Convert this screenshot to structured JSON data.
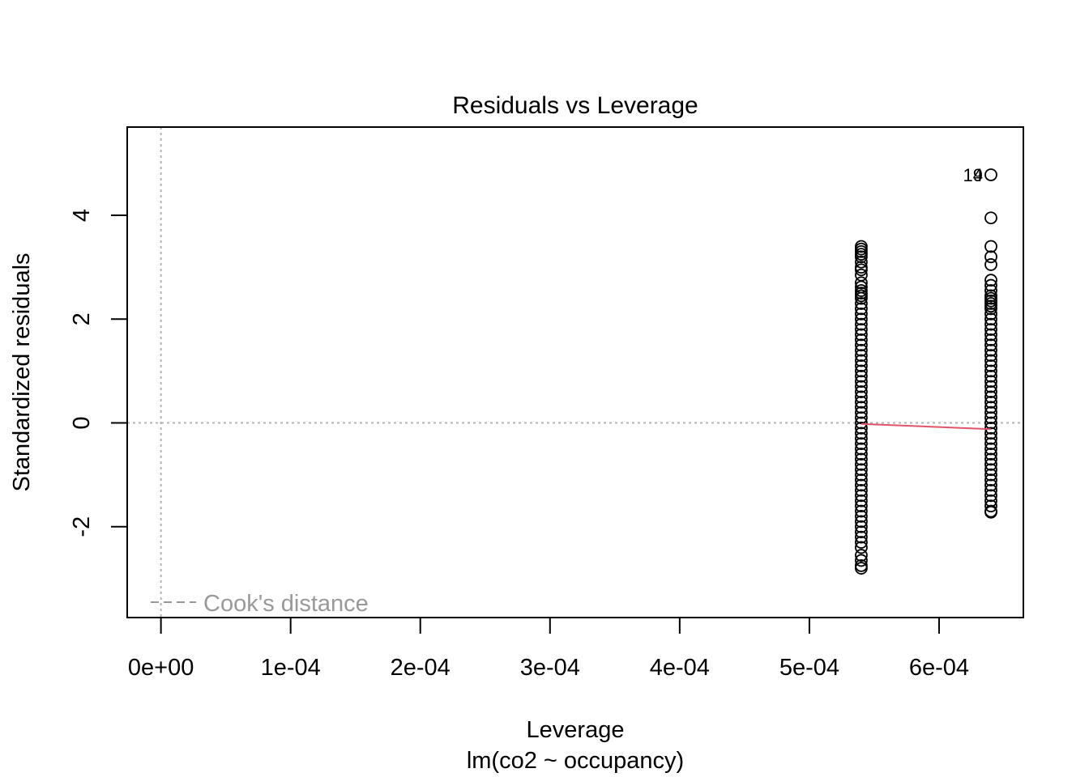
{
  "chart_data": {
    "type": "scatter",
    "title": "Residuals vs Leverage",
    "xlabel": "Leverage",
    "subtitle": "lm(co2 ~ occupancy)",
    "ylabel": "Standardized residuals",
    "xlim": [
      -2.6e-05,
      0.000665
    ],
    "ylim": [
      -3.75,
      5.7
    ],
    "x_ticks": [
      {
        "value": 0,
        "label": "0e+00"
      },
      {
        "value": 0.0001,
        "label": "1e-04"
      },
      {
        "value": 0.0002,
        "label": "2e-04"
      },
      {
        "value": 0.0003,
        "label": "3e-04"
      },
      {
        "value": 0.0004,
        "label": "4e-04"
      },
      {
        "value": 0.0005,
        "label": "5e-04"
      },
      {
        "value": 0.0006,
        "label": "6e-04"
      }
    ],
    "y_ticks": [
      {
        "value": -2,
        "label": "-2"
      },
      {
        "value": 0,
        "label": "0"
      },
      {
        "value": 2,
        "label": "2"
      },
      {
        "value": 4,
        "label": "4"
      }
    ],
    "reference_lines": {
      "h": 0,
      "v": 0,
      "style": "dotted",
      "color": "#b3b3b3"
    },
    "series": [
      {
        "x": 0.00054,
        "y": [
          3.4,
          3.35,
          3.3,
          3.25,
          3.2,
          3.1,
          3.0,
          2.95,
          2.85,
          2.7,
          2.62,
          2.55,
          2.5,
          2.45,
          2.4,
          2.3,
          2.2,
          2.1,
          2.0,
          1.9,
          1.8,
          1.7,
          1.6,
          1.5,
          1.4,
          1.3,
          1.2,
          1.1,
          1.0,
          0.9,
          0.8,
          0.7,
          0.6,
          0.5,
          0.4,
          0.3,
          0.2,
          0.1,
          0.0,
          -0.1,
          -0.2,
          -0.3,
          -0.4,
          -0.5,
          -0.6,
          -0.7,
          -0.8,
          -0.9,
          -1.0,
          -1.1,
          -1.2,
          -1.3,
          -1.4,
          -1.5,
          -1.6,
          -1.7,
          -1.8,
          -1.9,
          -2.0,
          -2.1,
          -2.2,
          -2.3,
          -2.4,
          -2.55,
          -2.65,
          -2.75,
          -2.8
        ]
      },
      {
        "x": 0.00064,
        "y": [
          4.78,
          3.95,
          3.4,
          3.2,
          3.05,
          2.75,
          2.65,
          2.55,
          2.45,
          2.4,
          2.35,
          2.3,
          2.25,
          2.2,
          2.1,
          2.0,
          1.9,
          1.8,
          1.7,
          1.6,
          1.5,
          1.4,
          1.3,
          1.2,
          1.1,
          1.0,
          0.9,
          0.8,
          0.7,
          0.6,
          0.5,
          0.4,
          0.3,
          0.2,
          0.1,
          0.0,
          -0.1,
          -0.2,
          -0.3,
          -0.4,
          -0.5,
          -0.6,
          -0.7,
          -0.8,
          -0.9,
          -1.0,
          -1.1,
          -1.2,
          -1.3,
          -1.4,
          -1.5,
          -1.6,
          -1.7,
          -1.72
        ]
      }
    ],
    "smooth_line": {
      "color": "#df536b",
      "points": [
        [
          0.00054,
          -0.02
        ],
        [
          0.00064,
          -0.12
        ]
      ]
    },
    "annotations": [
      {
        "label": "19",
        "x": 0.00064,
        "y": 4.78
      },
      {
        "label": "4",
        "x": 0.00064,
        "y": 4.78
      }
    ],
    "legend": {
      "position": "bottom-left",
      "label": "Cook's distance",
      "color": "#999999",
      "line_style": "dashed"
    }
  }
}
